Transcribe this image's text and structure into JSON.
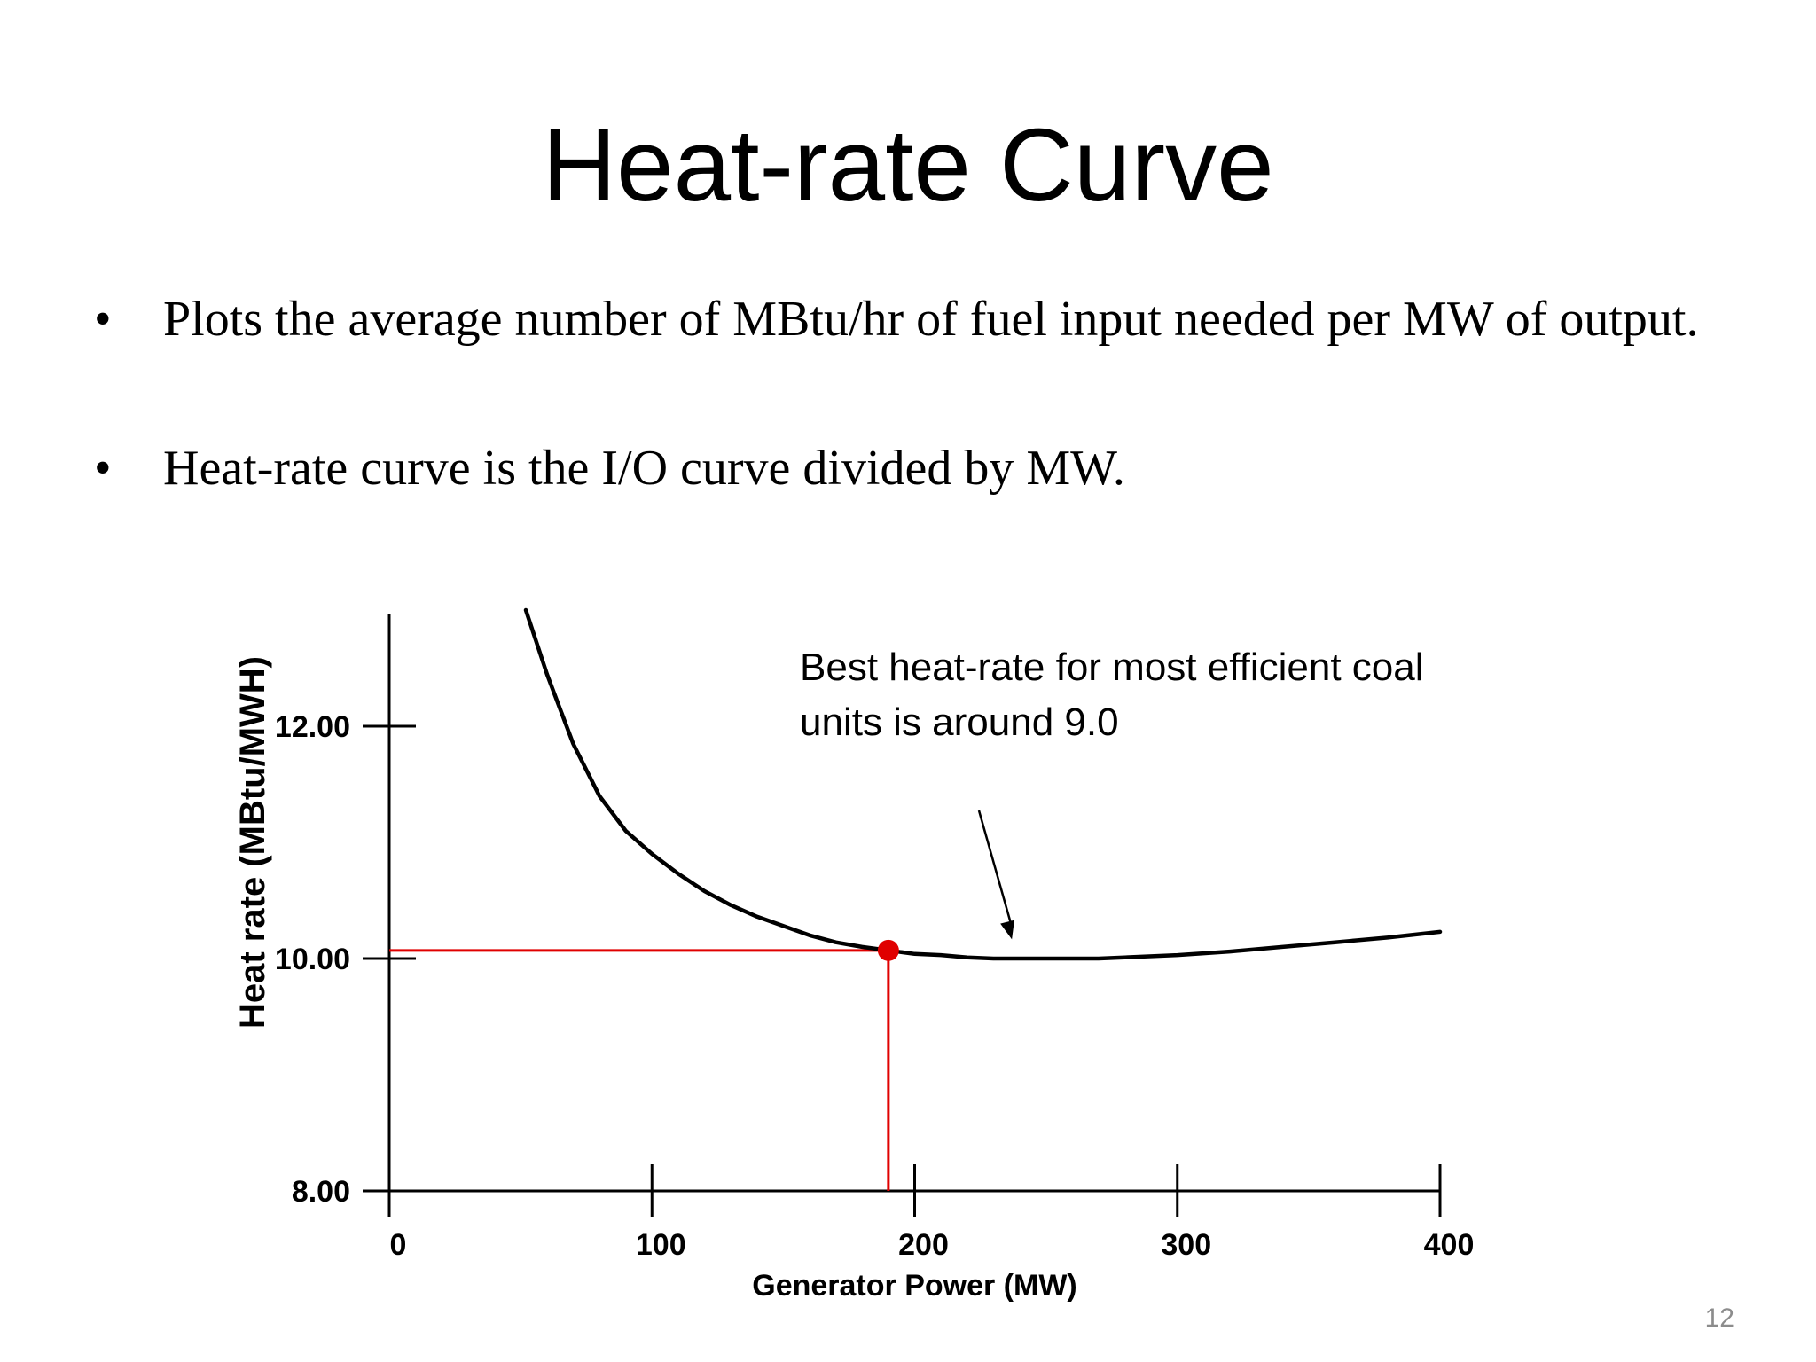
{
  "slide": {
    "title": "Heat-rate Curve",
    "bullets": [
      {
        "symbol": "•",
        "text": "Plots the average number of MBtu/hr of fuel input needed per MW of output."
      },
      {
        "symbol": "•",
        "text": "Heat-rate curve is the I/O curve divided by MW."
      }
    ],
    "annotation": {
      "lines": [
        "Best heat-rate for most efficient coal",
        "units is around 9.0"
      ]
    },
    "slide_number": "12"
  },
  "chart_data": {
    "type": "line",
    "title": "",
    "xlabel": "Generator Power (MW)",
    "ylabel": "Heat rate (MBtu/MWH)",
    "xlim": [
      0,
      400
    ],
    "ylim": [
      8.0,
      13.0
    ],
    "x_ticks": [
      0,
      100,
      200,
      300,
      400
    ],
    "x_tick_labels": [
      "0",
      "100",
      "200",
      "300",
      "400"
    ],
    "y_ticks": [
      8,
      10,
      12
    ],
    "y_tick_labels": [
      "8.00",
      "10.00",
      "12.00"
    ],
    "grid": false,
    "legend": "none",
    "series": [
      {
        "color": "#000000",
        "x": [
          52,
          60,
          70,
          80,
          90,
          100,
          110,
          120,
          130,
          140,
          150,
          160,
          170,
          180,
          190,
          200,
          210,
          220,
          230,
          240,
          250,
          260,
          270,
          280,
          300,
          320,
          340,
          360,
          380,
          400
        ],
        "y": [
          13.0,
          12.45,
          11.85,
          11.4,
          11.1,
          10.9,
          10.73,
          10.58,
          10.46,
          10.36,
          10.28,
          10.2,
          10.14,
          10.1,
          10.07,
          10.04,
          10.03,
          10.01,
          10.0,
          10.0,
          10.0,
          10.0,
          10.0,
          10.01,
          10.03,
          10.06,
          10.1,
          10.14,
          10.18,
          10.23
        ]
      }
    ],
    "highlight_point": {
      "x": 190,
      "y": 10.07,
      "color": "#e00000"
    },
    "annotation_arrow_target": {
      "x": 237,
      "y": 10.18
    }
  }
}
